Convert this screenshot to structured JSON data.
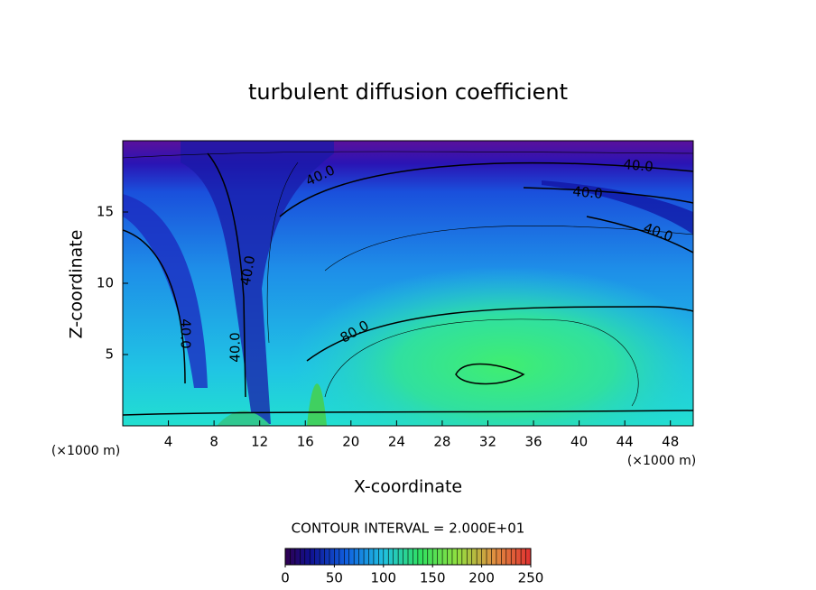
{
  "chart_data": {
    "type": "contour",
    "title": "turbulent diffusion coefficient",
    "x_label": "X-coordinate",
    "y_label": "Z-coordinate",
    "x_unit": "(×1000 m)",
    "y_unit": "(×1000 m)",
    "xlim": [
      0,
      50
    ],
    "xticks": [
      4,
      8,
      12,
      16,
      20,
      24,
      28,
      32,
      36,
      40,
      44,
      48
    ],
    "ylim": [
      0,
      20
    ],
    "yticks": [
      5,
      10,
      15
    ],
    "contour_interval_label": "CONTOUR INTERVAL = 2.000E+01",
    "contour_labels": [
      "40.0",
      "40.0",
      "40.0",
      "40.0",
      "40.0",
      "40.0",
      "40.0",
      "80.0"
    ],
    "colorbar": {
      "lim": [
        0,
        250
      ],
      "ticks": [
        0,
        50,
        100,
        150,
        200,
        250
      ]
    }
  }
}
